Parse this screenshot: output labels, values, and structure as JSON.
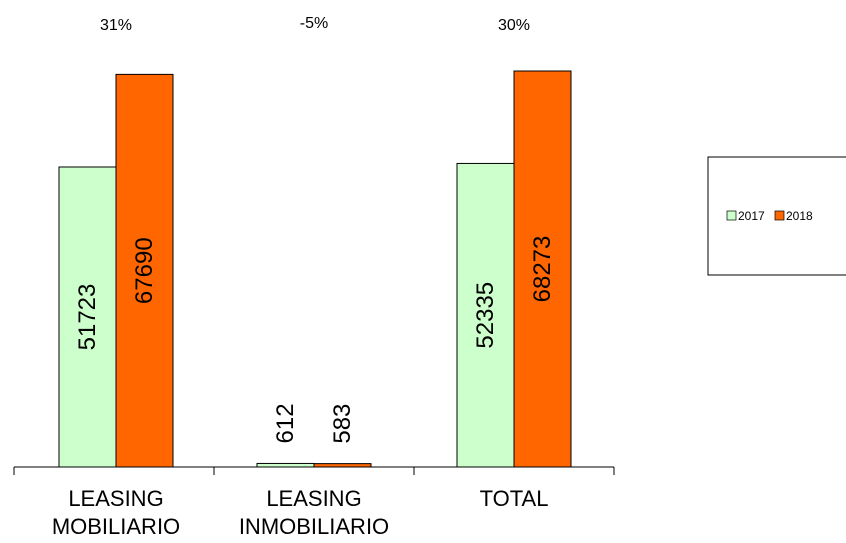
{
  "chart_data": {
    "type": "bar",
    "categories": [
      [
        "LEASING",
        "MOBILIARIO"
      ],
      [
        "LEASING",
        "INMOBILIARIO"
      ],
      [
        "TOTAL"
      ]
    ],
    "series": [
      {
        "name": "2017",
        "values": [
          51723,
          612,
          52335
        ],
        "color": "#ccffcc"
      },
      {
        "name": "2018",
        "values": [
          67690,
          583,
          68273
        ],
        "color": "#ff6600"
      }
    ],
    "growth_labels": [
      "31%",
      "-5%",
      "30%"
    ],
    "ylim": [
      0,
      68273
    ],
    "grid": false,
    "legend_position": "right"
  }
}
